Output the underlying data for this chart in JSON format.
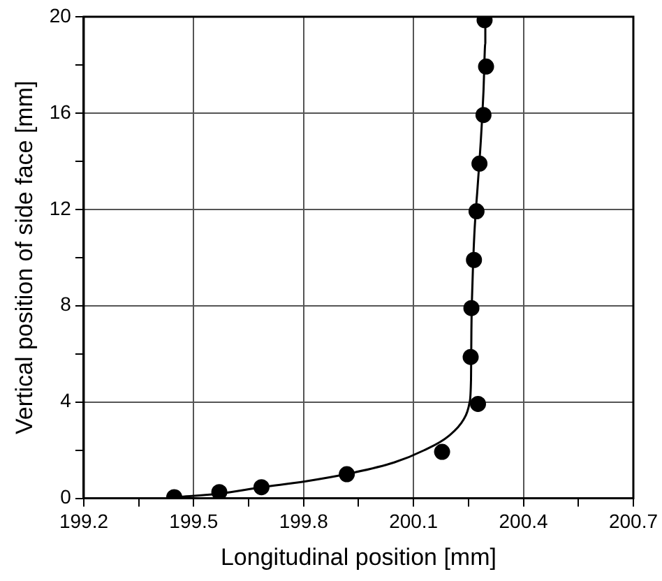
{
  "chart_data": {
    "type": "scatter",
    "xlabel": "Longitudinal position [mm]",
    "ylabel": "Vertical position of side face [mm]",
    "xlim": [
      199.2,
      200.7
    ],
    "ylim": [
      0,
      20
    ],
    "xticks": [
      199.2,
      {
        "value": 199.35,
        "label": null
      },
      199.5,
      {
        "value": 199.65,
        "label": null
      },
      199.8,
      {
        "value": 199.95,
        "label": null
      },
      200.1,
      {
        "value": 200.25,
        "label": null
      },
      200.4,
      {
        "value": 200.55,
        "label": null
      },
      200.7
    ],
    "yticks": [
      0,
      {
        "value": 2,
        "label": null
      },
      4,
      {
        "value": 6,
        "label": null
      },
      8,
      {
        "value": 10,
        "label": null
      },
      12,
      {
        "value": 14,
        "label": null
      },
      16,
      {
        "value": 18,
        "label": null
      },
      20
    ],
    "grid": true,
    "legend": false,
    "series": [
      {
        "color": "#000000",
        "marker": "circle",
        "x": [
          199.447,
          199.57,
          199.685,
          199.918,
          200.178,
          200.276,
          200.256,
          200.258,
          200.265,
          200.272,
          200.28,
          200.291,
          200.298,
          200.294
        ],
        "values": [
          0.05,
          0.26,
          0.46,
          1.0,
          1.93,
          3.92,
          5.87,
          7.9,
          9.9,
          11.92,
          13.9,
          15.92,
          17.93,
          19.86
        ]
      },
      {
        "type": "line",
        "color": "#000000",
        "marker": "none",
        "line_style": "solid",
        "x": [
          199.447,
          199.573,
          199.685,
          199.803,
          199.918,
          200.047,
          200.128,
          200.196,
          200.237,
          200.253,
          200.257,
          200.258,
          200.261,
          200.266,
          200.275,
          200.284,
          200.291,
          200.296,
          200.296
        ],
        "values": [
          0.04,
          0.2,
          0.46,
          0.7,
          1.01,
          1.49,
          1.99,
          2.59,
          3.28,
          3.98,
          4.98,
          6.97,
          8.96,
          10.95,
          12.94,
          14.93,
          16.92,
          18.9,
          20.0
        ]
      }
    ]
  }
}
